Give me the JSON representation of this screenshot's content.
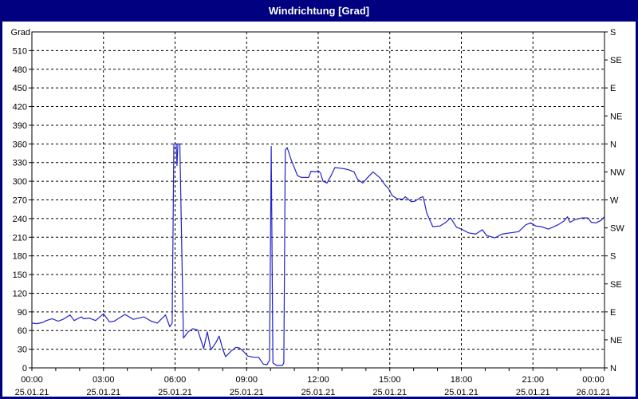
{
  "window": {
    "title": "Windrichtung [Grad]",
    "titlebar_color": "#000080",
    "title_text_color": "#ffffff",
    "border_color": "#000080",
    "background_color": "#ffffff"
  },
  "chart_data": {
    "type": "line",
    "title": "Windrichtung [Grad]",
    "ylabel": "Grad",
    "unit_label": "Grad",
    "line_color": "#2222cc",
    "axis_color": "#000000",
    "grid_color": "#000000",
    "grid_style": "dashed",
    "ylim": [
      0,
      540
    ],
    "y_tick_step": 30,
    "xlim_hours": [
      0,
      24
    ],
    "x_gridline_step_hours": 3,
    "x_minor_tick_step_hours": 1,
    "y_left_tick_values": [
      0,
      30,
      60,
      90,
      120,
      150,
      180,
      210,
      240,
      270,
      300,
      330,
      360,
      390,
      420,
      450,
      480,
      510
    ],
    "y_right_compass_ticks": [
      {
        "value": 0,
        "label": "N"
      },
      {
        "value": 45,
        "label": "NE"
      },
      {
        "value": 90,
        "label": "E"
      },
      {
        "value": 135,
        "label": "SE"
      },
      {
        "value": 180,
        "label": "S"
      },
      {
        "value": 225,
        "label": "SW"
      },
      {
        "value": 270,
        "label": "W"
      },
      {
        "value": 315,
        "label": "NW"
      },
      {
        "value": 360,
        "label": "N"
      },
      {
        "value": 405,
        "label": "NE"
      },
      {
        "value": 450,
        "label": "E"
      },
      {
        "value": 495,
        "label": "SE"
      },
      {
        "value": 540,
        "label": "S"
      }
    ],
    "x_ticks": [
      {
        "hours": 0,
        "time": "00:00",
        "date": "25.01.21"
      },
      {
        "hours": 3,
        "time": "03:00",
        "date": "25.01.21"
      },
      {
        "hours": 6,
        "time": "06:00",
        "date": "25.01.21"
      },
      {
        "hours": 9,
        "time": "09:00",
        "date": "25.01.21"
      },
      {
        "hours": 12,
        "time": "12:00",
        "date": "25.01.21"
      },
      {
        "hours": 15,
        "time": "15:00",
        "date": "25.01.21"
      },
      {
        "hours": 18,
        "time": "18:00",
        "date": "25.01.21"
      },
      {
        "hours": 21,
        "time": "21:00",
        "date": "25.01.21"
      },
      {
        "hours": 24,
        "time": "00:00",
        "date": "26.01.21"
      }
    ],
    "series": [
      {
        "name": "Windrichtung",
        "points": [
          [
            0,
            72
          ],
          [
            0.2,
            71
          ],
          [
            0.45,
            73
          ],
          [
            0.6,
            76
          ],
          [
            0.85,
            79
          ],
          [
            1.1,
            75
          ],
          [
            1.3,
            78
          ],
          [
            1.6,
            85
          ],
          [
            1.77,
            76
          ],
          [
            2.07,
            82
          ],
          [
            2.17,
            79
          ],
          [
            2.4,
            80
          ],
          [
            2.67,
            76
          ],
          [
            3.0,
            87
          ],
          [
            3.25,
            74
          ],
          [
            3.45,
            75
          ],
          [
            3.9,
            86
          ],
          [
            4.25,
            78
          ],
          [
            4.7,
            82
          ],
          [
            5.0,
            75
          ],
          [
            5.25,
            72
          ],
          [
            5.6,
            85
          ],
          [
            5.78,
            66
          ],
          [
            5.88,
            72
          ],
          [
            5.95,
            360
          ],
          [
            6.05,
            360
          ],
          [
            6.08,
            325
          ],
          [
            6.12,
            360
          ],
          [
            6.2,
            360
          ],
          [
            6.35,
            48
          ],
          [
            6.55,
            58
          ],
          [
            6.75,
            63
          ],
          [
            6.95,
            61
          ],
          [
            7.2,
            31
          ],
          [
            7.35,
            58
          ],
          [
            7.5,
            29
          ],
          [
            7.7,
            40
          ],
          [
            7.85,
            51
          ],
          [
            8.0,
            30
          ],
          [
            8.12,
            18
          ],
          [
            8.35,
            27
          ],
          [
            8.55,
            33
          ],
          [
            8.7,
            32
          ],
          [
            8.85,
            27
          ],
          [
            9.05,
            19
          ],
          [
            9.3,
            17
          ],
          [
            9.5,
            17
          ],
          [
            9.7,
            6
          ],
          [
            9.85,
            5
          ],
          [
            9.96,
            12
          ],
          [
            10.03,
            356
          ],
          [
            10.1,
            8
          ],
          [
            10.25,
            4
          ],
          [
            10.5,
            4
          ],
          [
            10.56,
            8
          ],
          [
            10.62,
            350
          ],
          [
            10.7,
            354
          ],
          [
            10.87,
            334
          ],
          [
            11.03,
            319
          ],
          [
            11.13,
            309
          ],
          [
            11.3,
            306
          ],
          [
            11.6,
            306
          ],
          [
            11.7,
            316
          ],
          [
            11.9,
            315
          ],
          [
            12.0,
            317
          ],
          [
            12.1,
            313
          ],
          [
            12.2,
            300
          ],
          [
            12.37,
            297
          ],
          [
            12.55,
            310
          ],
          [
            12.7,
            322
          ],
          [
            12.9,
            321
          ],
          [
            13.1,
            320
          ],
          [
            13.3,
            318
          ],
          [
            13.5,
            315
          ],
          [
            13.65,
            303
          ],
          [
            13.87,
            297
          ],
          [
            14.05,
            305
          ],
          [
            14.3,
            315
          ],
          [
            14.6,
            305
          ],
          [
            14.8,
            294
          ],
          [
            14.95,
            288
          ],
          [
            15.1,
            277
          ],
          [
            15.3,
            272
          ],
          [
            15.55,
            271
          ],
          [
            15.65,
            275
          ],
          [
            15.9,
            267
          ],
          [
            16.05,
            268
          ],
          [
            16.3,
            274
          ],
          [
            16.4,
            275
          ],
          [
            16.55,
            249
          ],
          [
            16.8,
            227
          ],
          [
            17.1,
            228
          ],
          [
            17.35,
            234
          ],
          [
            17.55,
            241
          ],
          [
            17.8,
            226
          ],
          [
            18.0,
            223
          ],
          [
            18.3,
            217
          ],
          [
            18.6,
            215
          ],
          [
            18.88,
            222
          ],
          [
            19.05,
            213
          ],
          [
            19.4,
            209
          ],
          [
            19.7,
            215
          ],
          [
            20.05,
            217
          ],
          [
            20.4,
            219
          ],
          [
            20.7,
            230
          ],
          [
            20.9,
            233
          ],
          [
            21.12,
            228
          ],
          [
            21.35,
            227
          ],
          [
            21.65,
            223
          ],
          [
            22.05,
            230
          ],
          [
            22.3,
            236
          ],
          [
            22.45,
            243
          ],
          [
            22.55,
            234
          ],
          [
            22.75,
            238
          ],
          [
            23.05,
            241
          ],
          [
            23.3,
            241
          ],
          [
            23.45,
            234
          ],
          [
            23.65,
            233
          ],
          [
            23.85,
            237
          ],
          [
            24.0,
            243
          ]
        ]
      }
    ]
  }
}
